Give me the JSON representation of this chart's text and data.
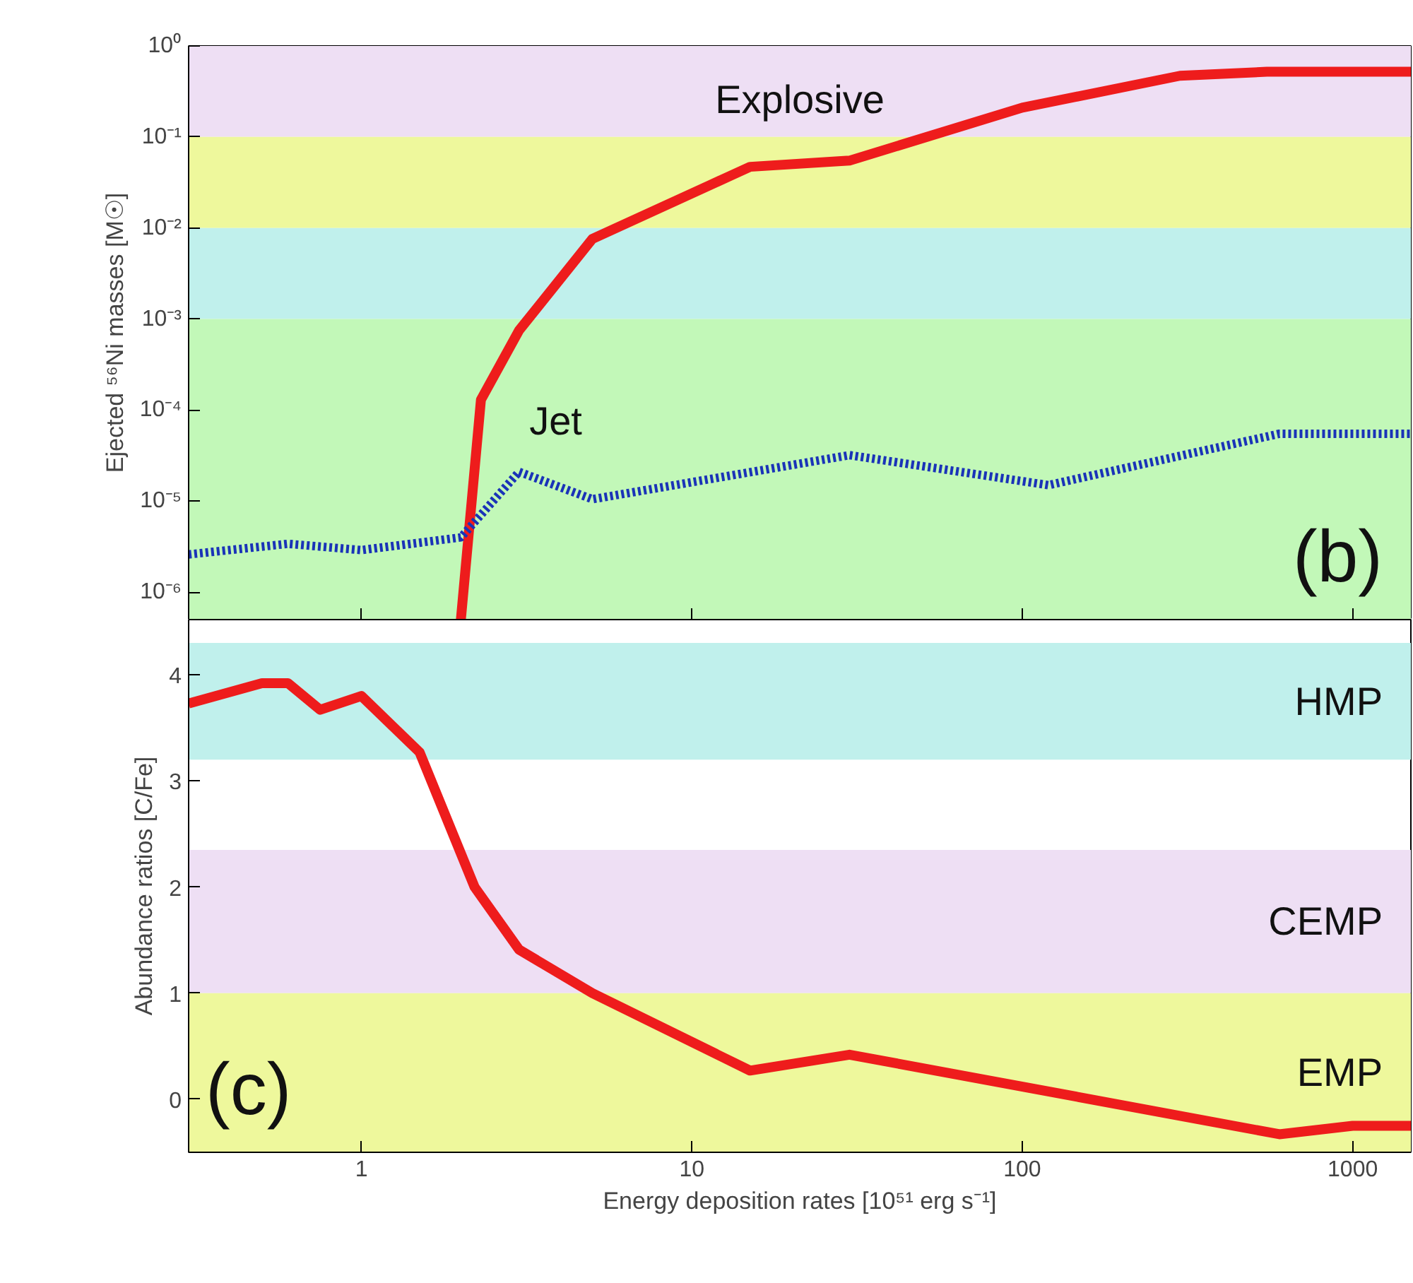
{
  "chart_data": [
    {
      "type": "line",
      "ylabel": "Ejected ⁵⁶Ni masses [M☉]",
      "log": "xy",
      "xlim": [
        0.3,
        1500
      ],
      "xticks": [
        1,
        10,
        100,
        1000
      ],
      "ylim": [
        5e-07,
        1
      ],
      "yticks": [
        {
          "value": 1,
          "label": "10⁰"
        },
        {
          "value": 0.1,
          "label": "10⁻¹"
        },
        {
          "value": 0.01,
          "label": "10⁻²"
        },
        {
          "value": 0.001,
          "label": "10⁻³"
        },
        {
          "value": 0.0001,
          "label": "10⁻⁴"
        },
        {
          "value": 1e-05,
          "label": "10⁻⁵"
        },
        {
          "value": 1e-06,
          "label": "10⁻⁶"
        }
      ],
      "tick_labels": "y",
      "grid": false,
      "series": [
        {
          "name": "Explosive",
          "color": "#ee1c1c",
          "line_style": "solid",
          "x": [
            2,
            2.3,
            3,
            5,
            15,
            30,
            100,
            300,
            550,
            1500
          ],
          "values": [
            5e-07,
            0.00013,
            0.00075,
            0.0076,
            0.047,
            0.055,
            0.21,
            0.47,
            0.52,
            0.52
          ]
        },
        {
          "name": "Jet",
          "color": "#1a33b8",
          "line_style": "dotted",
          "x": [
            0.3,
            0.6,
            1,
            2,
            3,
            5,
            30,
            120,
            600,
            1500
          ],
          "values": [
            2.6e-06,
            3.4e-06,
            2.9e-06,
            4e-06,
            2.1e-05,
            1.05e-05,
            3.2e-05,
            1.5e-05,
            5.5e-05,
            5.5e-05
          ]
        }
      ],
      "bands": [
        {
          "axis": "y",
          "from": 0.1,
          "to": 1,
          "color": "#eedff4"
        },
        {
          "axis": "y",
          "from": 0.01,
          "to": 0.1,
          "color": "#eef89c"
        },
        {
          "axis": "y",
          "from": 0.001,
          "to": 0.01,
          "color": "#c0f0ec"
        },
        {
          "axis": "y",
          "from": 5e-07,
          "to": 0.001,
          "color": "#c2f8b8"
        }
      ],
      "annotations": [
        "(b)"
      ]
    },
    {
      "type": "line",
      "xlabel": "Energy deposition rates [10⁵¹ erg s⁻¹]",
      "ylabel": "Abundance ratios [C/Fe]",
      "log": "x",
      "xlim": [
        0.3,
        1500
      ],
      "xticks": [
        1,
        10,
        100,
        1000
      ],
      "ylim": [
        -0.5,
        4.52
      ],
      "yticks": [
        0,
        1,
        2,
        3,
        4
      ],
      "grid": false,
      "series": [
        {
          "color": "#ee1c1c",
          "line_style": "solid",
          "x": [
            0.3,
            0.5,
            0.6,
            0.75,
            1,
            1.5,
            2.2,
            3,
            5,
            15,
            30,
            600,
            1000,
            1500
          ],
          "values": [
            3.73,
            3.92,
            3.92,
            3.67,
            3.8,
            3.27,
            2.0,
            1.41,
            1.0,
            0.27,
            0.42,
            -0.33,
            -0.25,
            -0.25
          ]
        }
      ],
      "bands": [
        {
          "axis": "y",
          "from": 3.2,
          "to": 4.3,
          "color": "#c0f0ec",
          "label": "HMP"
        },
        {
          "axis": "y",
          "from": 1,
          "to": 2.35,
          "color": "#eedff4",
          "label": "CEMP"
        },
        {
          "axis": "y",
          "from": -0.5,
          "to": 1,
          "color": "#eef89c",
          "label": "EMP"
        }
      ],
      "annotations": [
        "(c)"
      ]
    }
  ]
}
